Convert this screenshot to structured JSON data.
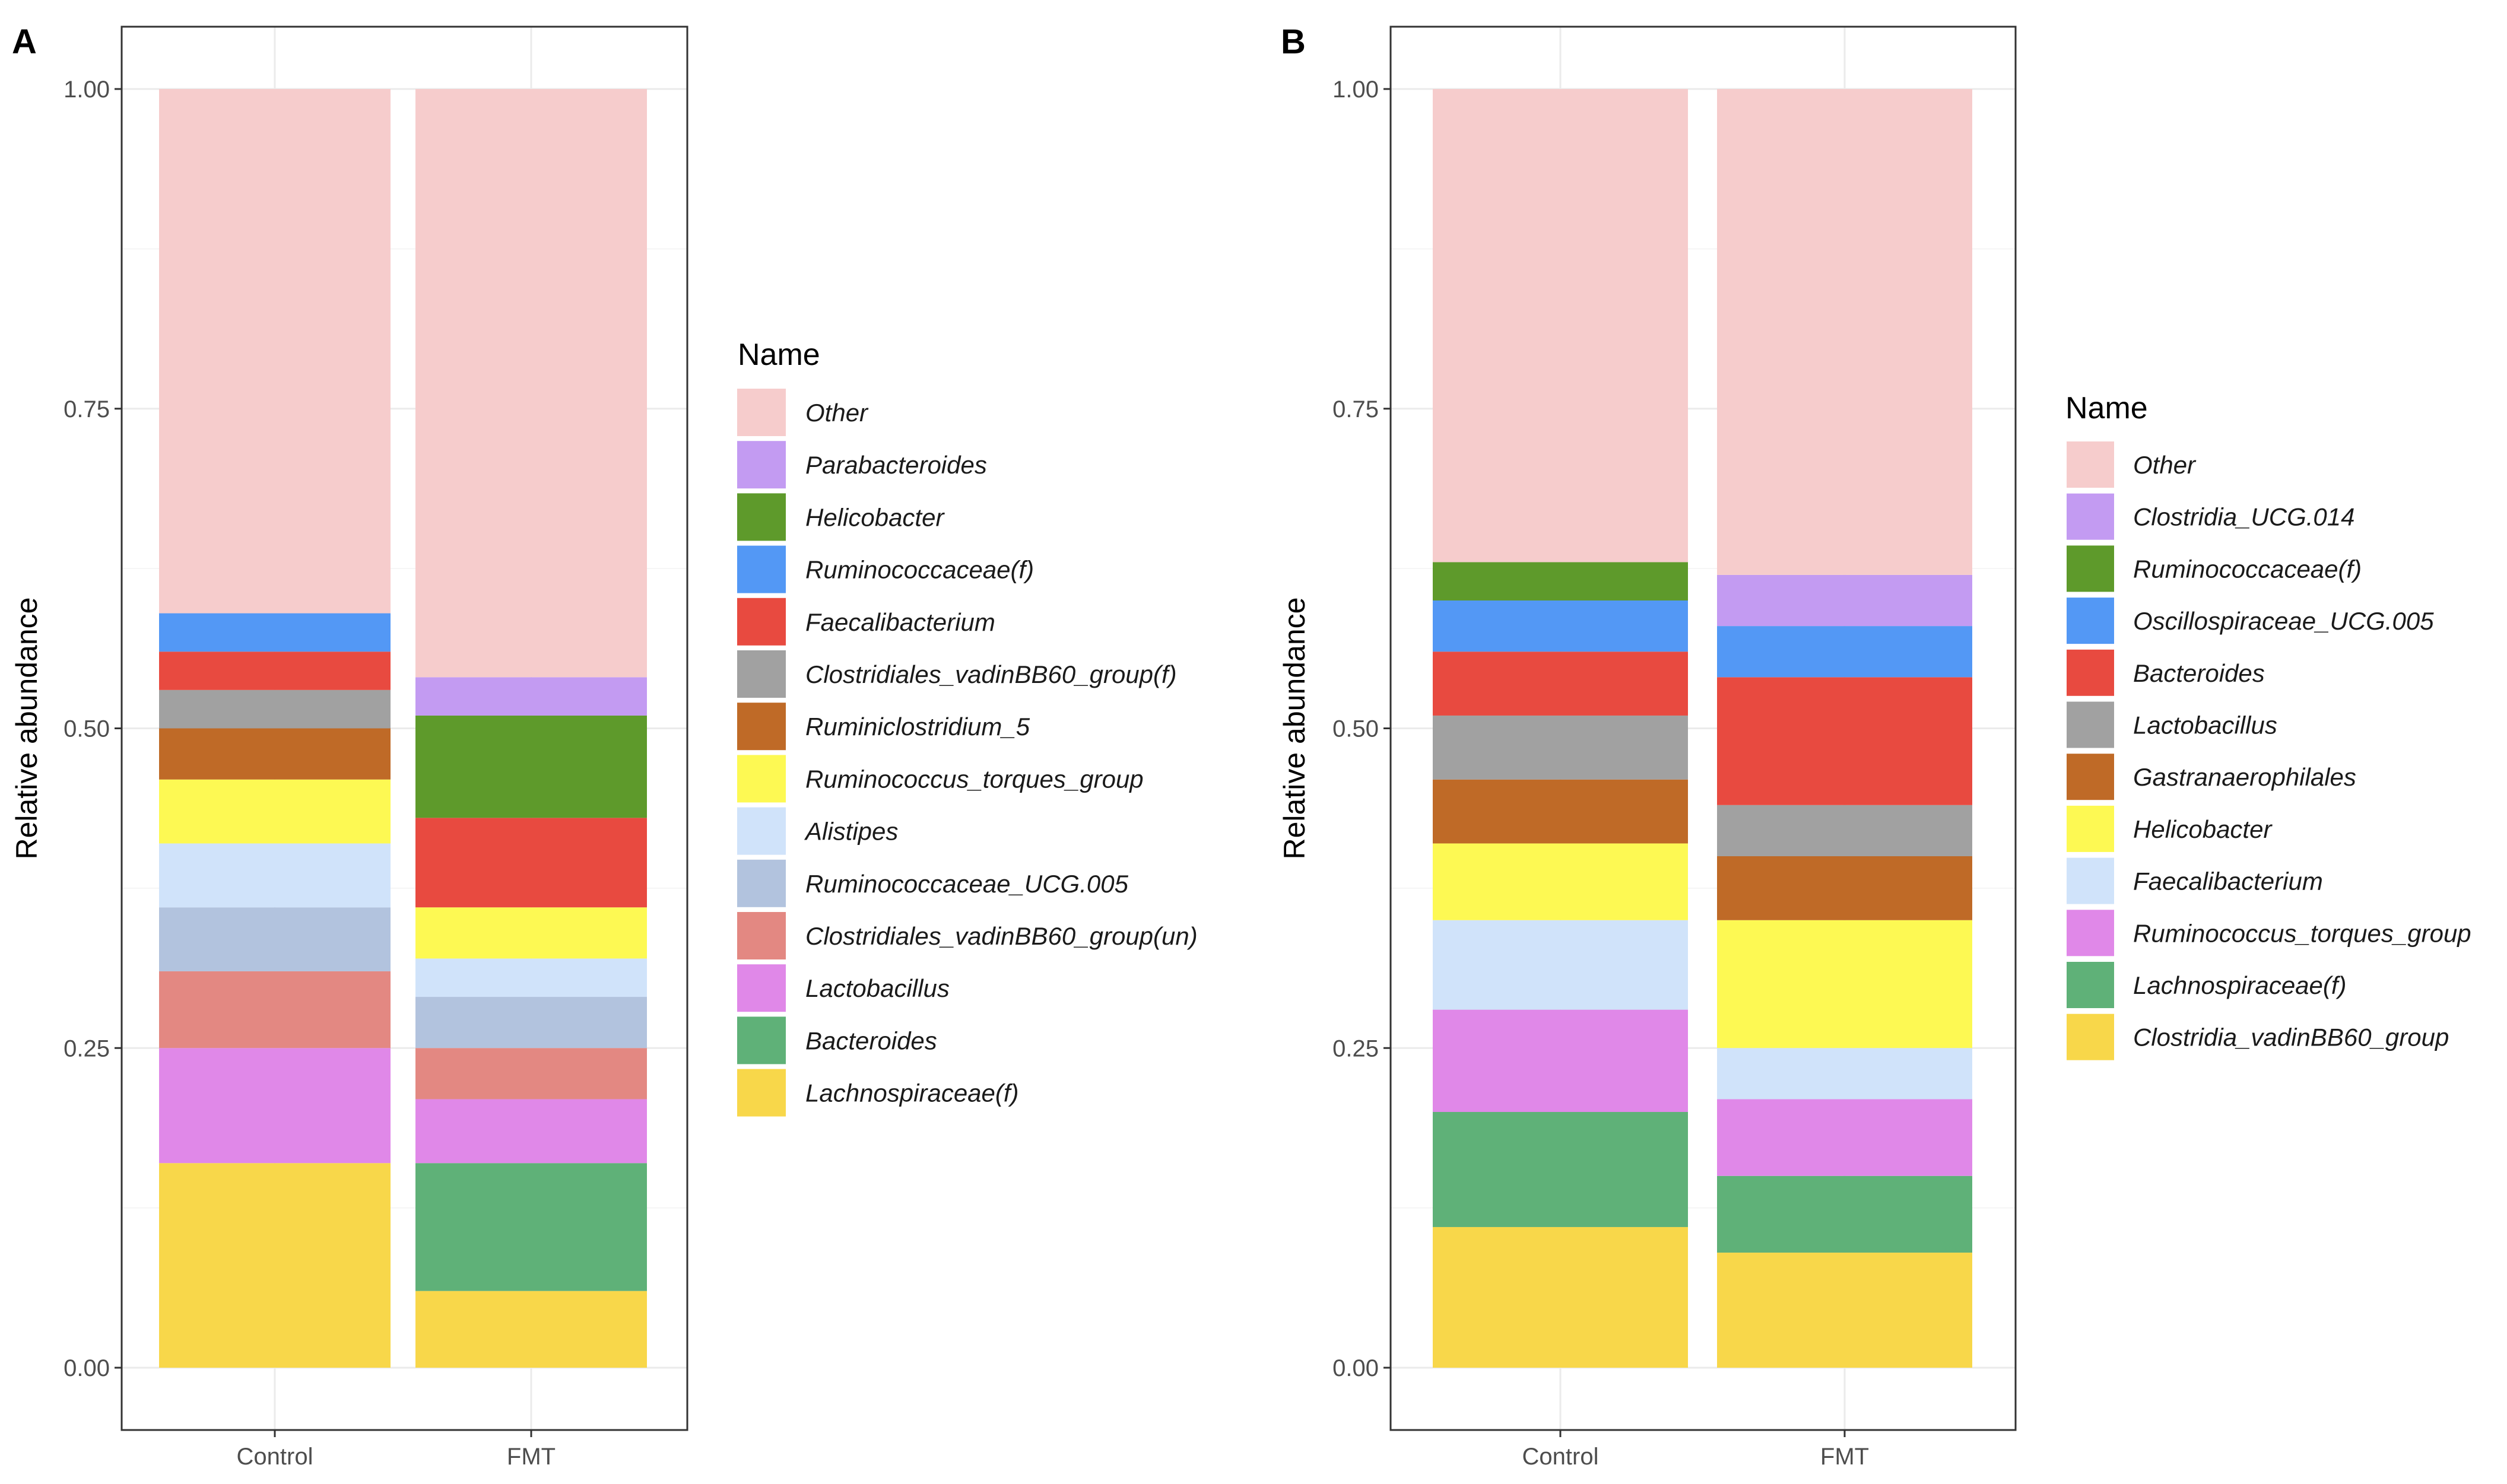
{
  "chart_data": [
    {
      "panel_label": "A",
      "type": "bar",
      "stacked": true,
      "categories": [
        "Control",
        "FMT"
      ],
      "ylabel": "Relative abundance",
      "xlabel": "",
      "ylim": [
        0,
        1
      ],
      "yticks": [
        "0.00",
        "0.25",
        "0.50",
        "0.75",
        "1.00"
      ],
      "legend_title": "Name",
      "legend_position": "right",
      "series": [
        {
          "name": "Lachnospiraceae(f)",
          "color": "#f8d74a",
          "values": [
            0.16,
            0.06
          ]
        },
        {
          "name": "Bacteroides",
          "color": "#5fb178",
          "values": [
            0.0,
            0.1
          ]
        },
        {
          "name": "Lactobacillus",
          "color": "#e088e8",
          "values": [
            0.09,
            0.05
          ]
        },
        {
          "name": "Clostridiales_vadinBB60_group(un)",
          "color": "#e38882",
          "values": [
            0.06,
            0.04
          ]
        },
        {
          "name": "Ruminococcaceae_UCG.005",
          "color": "#b2c3de",
          "values": [
            0.05,
            0.04
          ]
        },
        {
          "name": "Alistipes",
          "color": "#d0e3fa",
          "values": [
            0.05,
            0.03
          ]
        },
        {
          "name": "Ruminococcus_torques_group",
          "color": "#fdf953",
          "values": [
            0.05,
            0.04
          ]
        },
        {
          "name": "Ruminiclostridium_5",
          "color": "#bf6a27",
          "values": [
            0.04,
            0.0
          ]
        },
        {
          "name": "Clostridiales_vadinBB60_group(f)",
          "color": "#a1a1a1",
          "values": [
            0.03,
            0.0
          ]
        },
        {
          "name": "Faecalibacterium",
          "color": "#e84a40",
          "values": [
            0.03,
            0.07
          ]
        },
        {
          "name": "Ruminococcaceae(f)",
          "color": "#5398f5",
          "values": [
            0.03,
            0.0
          ]
        },
        {
          "name": "Helicobacter",
          "color": "#5e9a2b",
          "values": [
            0.0,
            0.08
          ]
        },
        {
          "name": "Parabacteroides",
          "color": "#c39bf2",
          "values": [
            0.0,
            0.03
          ]
        },
        {
          "name": "Other",
          "color": "#f6cccc",
          "values": [
            0.41,
            0.46
          ]
        }
      ],
      "legend_order": [
        "Other",
        "Parabacteroides",
        "Helicobacter",
        "Ruminococcaceae(f)",
        "Faecalibacterium",
        "Clostridiales_vadinBB60_group(f)",
        "Ruminiclostridium_5",
        "Ruminococcus_torques_group",
        "Alistipes",
        "Ruminococcaceae_UCG.005",
        "Clostridiales_vadinBB60_group(un)",
        "Lactobacillus",
        "Bacteroides",
        "Lachnospiraceae(f)"
      ]
    },
    {
      "panel_label": "B",
      "type": "bar",
      "stacked": true,
      "categories": [
        "Control",
        "FMT"
      ],
      "ylabel": "Relative abundance",
      "xlabel": "",
      "ylim": [
        0,
        1
      ],
      "yticks": [
        "0.00",
        "0.25",
        "0.50",
        "0.75",
        "1.00"
      ],
      "legend_title": "Name",
      "legend_position": "right",
      "series": [
        {
          "name": "Clostridia_vadinBB60_group",
          "color": "#f8d74a",
          "values": [
            0.11,
            0.09
          ]
        },
        {
          "name": "Lachnospiraceae(f)",
          "color": "#5fb178",
          "values": [
            0.09,
            0.06
          ]
        },
        {
          "name": "Ruminococcus_torques_group",
          "color": "#e088e8",
          "values": [
            0.08,
            0.06
          ]
        },
        {
          "name": "Faecalibacterium",
          "color": "#d0e3fa",
          "values": [
            0.07,
            0.04
          ]
        },
        {
          "name": "Helicobacter",
          "color": "#fdf953",
          "values": [
            0.06,
            0.1
          ]
        },
        {
          "name": "Gastranaerophilales",
          "color": "#bf6a27",
          "values": [
            0.05,
            0.05
          ]
        },
        {
          "name": "Lactobacillus",
          "color": "#a1a1a1",
          "values": [
            0.05,
            0.04
          ]
        },
        {
          "name": "Bacteroides",
          "color": "#e84a40",
          "values": [
            0.05,
            0.1
          ]
        },
        {
          "name": "Oscillospiraceae_UCG.005",
          "color": "#5398f5",
          "values": [
            0.04,
            0.04
          ]
        },
        {
          "name": "Ruminococcaceae(f)",
          "color": "#5e9a2b",
          "values": [
            0.03,
            0.0
          ]
        },
        {
          "name": "Clostridia_UCG.014",
          "color": "#c39bf2",
          "values": [
            0.0,
            0.04
          ]
        },
        {
          "name": "Other",
          "color": "#f6cccc",
          "values": [
            0.37,
            0.38
          ]
        }
      ],
      "legend_order": [
        "Other",
        "Clostridia_UCG.014",
        "Ruminococcaceae(f)",
        "Oscillospiraceae_UCG.005",
        "Bacteroides",
        "Lactobacillus",
        "Gastranaerophilales",
        "Helicobacter",
        "Faecalibacterium",
        "Ruminococcus_torques_group",
        "Lachnospiraceae(f)",
        "Clostridia_vadinBB60_group"
      ]
    }
  ]
}
